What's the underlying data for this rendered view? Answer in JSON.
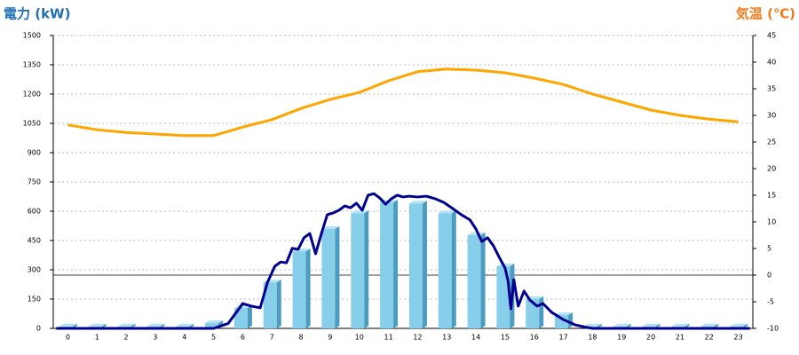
{
  "chart_data": {
    "type": "bar",
    "ylabel": "電力 (kW)",
    "y2label": "気温 (℃)",
    "categories": [
      "0",
      "1",
      "2",
      "3",
      "4",
      "5",
      "6",
      "7",
      "8",
      "9",
      "10",
      "11",
      "12",
      "13",
      "14",
      "15",
      "16",
      "17",
      "18",
      "19",
      "20",
      "21",
      "22",
      "23"
    ],
    "ylim": [
      0,
      1500
    ],
    "yticks": [
      0,
      150,
      300,
      450,
      600,
      750,
      900,
      1050,
      1200,
      1350,
      1500
    ],
    "y2lim": [
      -10,
      45
    ],
    "y2ticks": [
      -10,
      -5,
      0,
      5,
      10,
      15,
      20,
      25,
      30,
      35,
      40,
      45
    ],
    "grid": true,
    "series": [
      {
        "type": "bar",
        "color": "#87ceeb",
        "values": [
          10,
          10,
          10,
          10,
          10,
          27,
          105,
          236,
          395,
          509,
          590,
          645,
          640,
          590,
          477,
          318,
          150,
          68,
          10,
          10,
          10,
          10,
          10,
          10
        ]
      },
      {
        "type": "line",
        "color": "#000090",
        "x": [
          -0.4,
          5,
          5.5,
          6.0,
          6.3,
          6.6,
          6.85,
          7.1,
          7.3,
          7.5,
          7.7,
          7.9,
          8.1,
          8.3,
          8.5,
          8.7,
          8.9,
          9.1,
          9.3,
          9.5,
          9.7,
          9.9,
          10.1,
          10.3,
          10.5,
          10.7,
          10.9,
          11.1,
          11.3,
          11.5,
          11.7,
          12.0,
          12.3,
          12.6,
          12.9,
          13.2,
          13.5,
          13.8,
          14.0,
          14.2,
          14.4,
          14.6,
          14.8,
          15.0,
          15.1,
          15.2,
          15.3,
          15.45,
          15.65,
          15.85,
          16.1,
          16.3,
          16.6,
          17.0,
          17.4,
          17.8,
          18,
          23.4
        ],
        "values": [
          0,
          0,
          25,
          127,
          114,
          105,
          236,
          318,
          340,
          336,
          410,
          405,
          464,
          486,
          382,
          486,
          582,
          591,
          605,
          627,
          618,
          641,
          605,
          682,
          690,
          668,
          636,
          664,
          682,
          673,
          677,
          673,
          677,
          664,
          645,
          614,
          582,
          555,
          509,
          445,
          464,
          423,
          364,
          309,
          245,
          100,
          250,
          114,
          191,
          145,
          114,
          127,
          82,
          45,
          18,
          5,
          0,
          0
        ]
      },
      {
        "type": "line",
        "axis": "y2",
        "color": "#ffa500",
        "values": [
          28.2,
          27.3,
          26.8,
          26.5,
          26.2,
          26.2,
          27.8,
          29.2,
          31.3,
          33.0,
          34.3,
          36.5,
          38.2,
          38.7,
          38.5,
          38.0,
          37.0,
          35.8,
          34.0,
          32.5,
          31.0,
          30.0,
          29.3,
          28.8
        ]
      }
    ]
  }
}
